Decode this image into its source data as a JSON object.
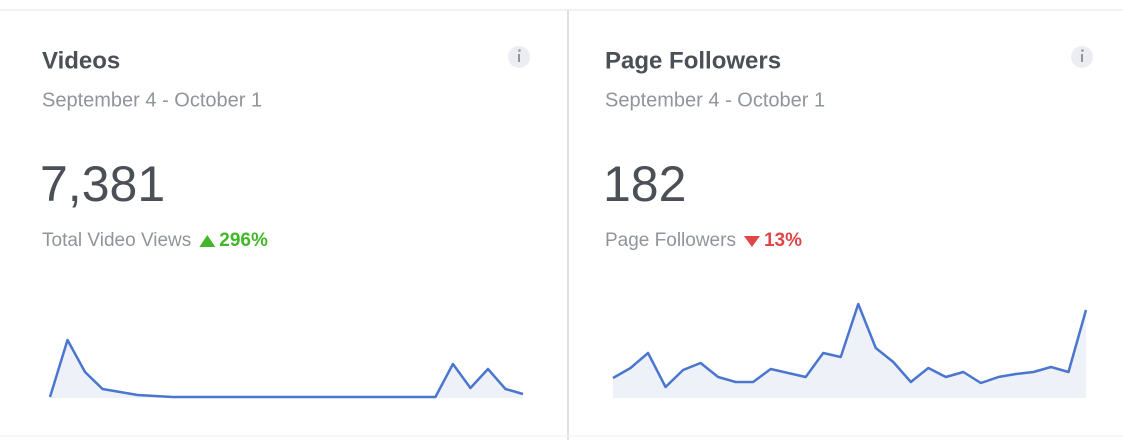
{
  "cards": [
    {
      "title": "Videos",
      "date_range": "September 4 - October 1",
      "metric_value": "7,381",
      "metric_label": "Total Video Views",
      "change": "296%",
      "change_direction": "up",
      "change_color": "#42b72a",
      "sparkline": {
        "type": "area",
        "color": "#4a76cf",
        "fill": "#eef1f8",
        "ylim": [
          0,
          98
        ],
        "values": [
          1,
          58,
          26,
          9,
          6,
          3,
          2,
          1,
          1,
          1,
          1,
          1,
          1,
          1,
          1,
          1,
          1,
          1,
          1,
          1,
          1,
          1,
          1,
          34,
          10,
          29,
          9,
          4
        ]
      }
    },
    {
      "title": "Page Followers",
      "date_range": "September 4 - October 1",
      "metric_value": "182",
      "metric_label": "Page Followers",
      "change": "13%",
      "change_direction": "down",
      "change_color": "#e04646",
      "sparkline": {
        "type": "area",
        "color": "#4a76cf",
        "fill": "#eef1f8",
        "ylim": [
          0,
          98
        ],
        "values": [
          20,
          30,
          45,
          11,
          28,
          35,
          21,
          16,
          16,
          29,
          25,
          21,
          45,
          41,
          94,
          50,
          36,
          16,
          30,
          21,
          26,
          15,
          21,
          24,
          26,
          31,
          26,
          88
        ]
      }
    }
  ]
}
